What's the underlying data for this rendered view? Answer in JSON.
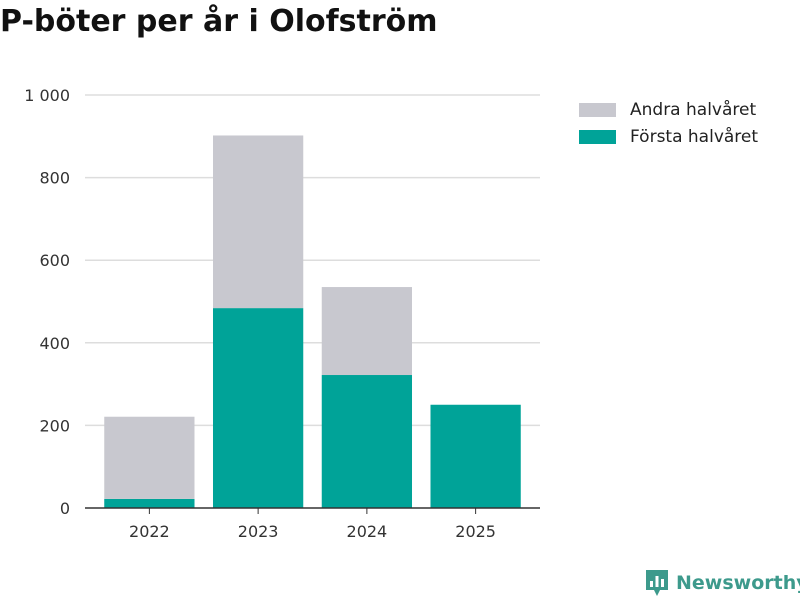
{
  "chart_data": {
    "type": "bar",
    "stacked": true,
    "title": "P-böter per år i Olofström",
    "categories": [
      "2022",
      "2023",
      "2024",
      "2025"
    ],
    "series": [
      {
        "name": "Första halvåret",
        "color": "#00a398",
        "values": [
          22,
          484,
          322,
          250
        ]
      },
      {
        "name": "Andra halvåret",
        "color": "#c8c8cf",
        "values": [
          199,
          418,
          213,
          0
        ]
      }
    ],
    "legend_order": [
      "Andra halvåret",
      "Första halvåret"
    ],
    "ylim": [
      0,
      1000
    ],
    "yticks": [
      0,
      200,
      400,
      600,
      800,
      1000
    ],
    "ytick_labels": [
      "0",
      "200",
      "400",
      "600",
      "800",
      "1 000"
    ],
    "xlabel": "",
    "ylabel": "",
    "grid": true,
    "legend_position": "top-right"
  },
  "brand": {
    "name": "Newsworthy",
    "color": "#3d9a8c"
  }
}
